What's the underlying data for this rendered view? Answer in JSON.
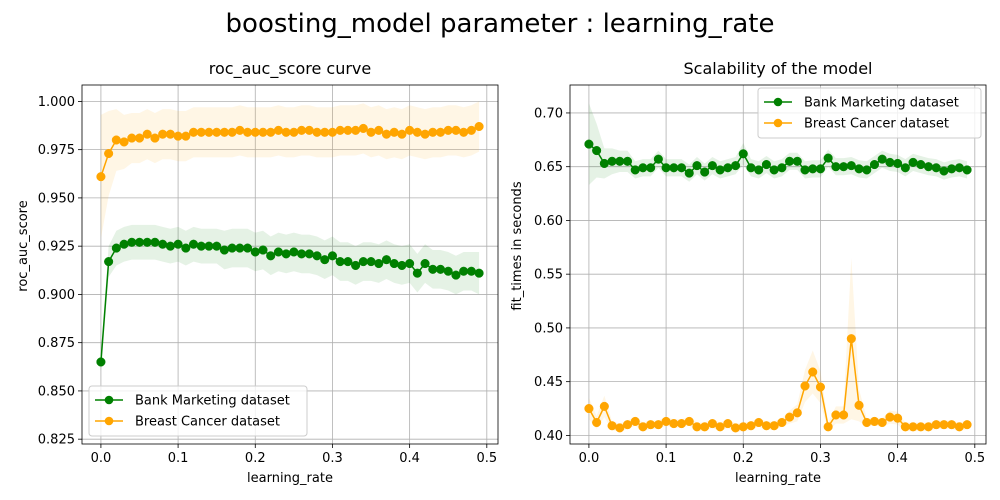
{
  "figure": {
    "title": "boosting_model parameter : learning_rate"
  },
  "chart_data": [
    {
      "type": "line",
      "title": "roc_auc_score curve",
      "xlabel": "learning_rate",
      "ylabel": "roc_auc_score",
      "xlim": [
        -0.0245,
        0.5145
      ],
      "ylim": [
        0.8225,
        1.0085
      ],
      "xticks": [
        "0.0",
        "0.1",
        "0.2",
        "0.3",
        "0.4",
        "0.5"
      ],
      "yticks": [
        "0.825",
        "0.850",
        "0.875",
        "0.900",
        "0.925",
        "0.950",
        "0.975",
        "1.000"
      ],
      "grid": true,
      "legend_position": "lower-left",
      "x": [
        0.0,
        0.01,
        0.02,
        0.03,
        0.04,
        0.05,
        0.06,
        0.07,
        0.08,
        0.09,
        0.1,
        0.11,
        0.12,
        0.13,
        0.14,
        0.15,
        0.16,
        0.17,
        0.18,
        0.19,
        0.2,
        0.21,
        0.22,
        0.23,
        0.24,
        0.25,
        0.26,
        0.27,
        0.28,
        0.29,
        0.3,
        0.31,
        0.32,
        0.33,
        0.34,
        0.35,
        0.36,
        0.37,
        0.38,
        0.39,
        0.4,
        0.41,
        0.42,
        0.43,
        0.44,
        0.45,
        0.46,
        0.47,
        0.48,
        0.49
      ],
      "series": [
        {
          "name": "Bank Marketing dataset",
          "color": "#008000",
          "values": [
            0.865,
            0.917,
            0.924,
            0.926,
            0.927,
            0.927,
            0.927,
            0.927,
            0.926,
            0.925,
            0.926,
            0.924,
            0.926,
            0.925,
            0.925,
            0.925,
            0.923,
            0.924,
            0.924,
            0.924,
            0.922,
            0.923,
            0.92,
            0.922,
            0.921,
            0.922,
            0.921,
            0.921,
            0.92,
            0.918,
            0.92,
            0.917,
            0.917,
            0.915,
            0.917,
            0.917,
            0.916,
            0.918,
            0.916,
            0.915,
            0.916,
            0.911,
            0.916,
            0.913,
            0.913,
            0.912,
            0.91,
            0.912,
            0.912,
            0.911
          ],
          "band": [
            0.005,
            0.008,
            0.009,
            0.009,
            0.009,
            0.009,
            0.009,
            0.009,
            0.009,
            0.009,
            0.009,
            0.009,
            0.009,
            0.009,
            0.009,
            0.009,
            0.01,
            0.01,
            0.01,
            0.01,
            0.01,
            0.01,
            0.01,
            0.01,
            0.01,
            0.01,
            0.01,
            0.01,
            0.01,
            0.01,
            0.01,
            0.01,
            0.01,
            0.01,
            0.01,
            0.01,
            0.01,
            0.01,
            0.01,
            0.01,
            0.01,
            0.01,
            0.01,
            0.01,
            0.01,
            0.01,
            0.01,
            0.01,
            0.01,
            0.011
          ]
        },
        {
          "name": "Breast Cancer dataset",
          "color": "#FFA500",
          "values": [
            0.961,
            0.973,
            0.98,
            0.979,
            0.981,
            0.981,
            0.983,
            0.981,
            0.983,
            0.983,
            0.982,
            0.982,
            0.984,
            0.984,
            0.984,
            0.984,
            0.984,
            0.984,
            0.985,
            0.984,
            0.984,
            0.984,
            0.984,
            0.985,
            0.984,
            0.984,
            0.985,
            0.985,
            0.984,
            0.984,
            0.984,
            0.985,
            0.985,
            0.985,
            0.986,
            0.984,
            0.985,
            0.983,
            0.984,
            0.983,
            0.985,
            0.984,
            0.983,
            0.984,
            0.984,
            0.985,
            0.985,
            0.984,
            0.985,
            0.987
          ],
          "band": [
            0.032,
            0.022,
            0.016,
            0.014,
            0.013,
            0.013,
            0.013,
            0.013,
            0.013,
            0.013,
            0.013,
            0.013,
            0.013,
            0.013,
            0.013,
            0.013,
            0.013,
            0.013,
            0.013,
            0.013,
            0.013,
            0.013,
            0.013,
            0.013,
            0.013,
            0.013,
            0.013,
            0.013,
            0.013,
            0.013,
            0.013,
            0.013,
            0.013,
            0.013,
            0.013,
            0.013,
            0.013,
            0.013,
            0.013,
            0.013,
            0.013,
            0.013,
            0.013,
            0.013,
            0.013,
            0.013,
            0.013,
            0.013,
            0.013,
            0.013
          ]
        }
      ]
    },
    {
      "type": "line",
      "title": "Scalability of the model",
      "xlabel": "learning_rate",
      "ylabel": "fit_times in seconds",
      "xlim": [
        -0.0245,
        0.5145
      ],
      "ylim": [
        0.392,
        0.726
      ],
      "xticks": [
        "0.0",
        "0.1",
        "0.2",
        "0.3",
        "0.4",
        "0.5"
      ],
      "yticks": [
        "0.40",
        "0.45",
        "0.50",
        "0.55",
        "0.60",
        "0.65",
        "0.70"
      ],
      "grid": true,
      "legend_position": "top-right",
      "x": [
        0.0,
        0.01,
        0.02,
        0.03,
        0.04,
        0.05,
        0.06,
        0.07,
        0.08,
        0.09,
        0.1,
        0.11,
        0.12,
        0.13,
        0.14,
        0.15,
        0.16,
        0.17,
        0.18,
        0.19,
        0.2,
        0.21,
        0.22,
        0.23,
        0.24,
        0.25,
        0.26,
        0.27,
        0.28,
        0.29,
        0.3,
        0.31,
        0.32,
        0.33,
        0.34,
        0.35,
        0.36,
        0.37,
        0.38,
        0.39,
        0.4,
        0.41,
        0.42,
        0.43,
        0.44,
        0.45,
        0.46,
        0.47,
        0.48,
        0.49
      ],
      "series": [
        {
          "name": "Bank Marketing dataset",
          "color": "#008000",
          "values": [
            0.671,
            0.665,
            0.653,
            0.655,
            0.655,
            0.655,
            0.647,
            0.649,
            0.649,
            0.657,
            0.649,
            0.649,
            0.649,
            0.644,
            0.651,
            0.645,
            0.651,
            0.647,
            0.649,
            0.651,
            0.662,
            0.649,
            0.647,
            0.652,
            0.647,
            0.649,
            0.655,
            0.655,
            0.647,
            0.648,
            0.648,
            0.658,
            0.65,
            0.65,
            0.651,
            0.648,
            0.647,
            0.652,
            0.657,
            0.654,
            0.653,
            0.649,
            0.654,
            0.652,
            0.65,
            0.649,
            0.646,
            0.648,
            0.649,
            0.647
          ],
          "band": [
            0.038,
            0.025,
            0.014,
            0.012,
            0.01,
            0.01,
            0.008,
            0.008,
            0.008,
            0.008,
            0.008,
            0.008,
            0.008,
            0.008,
            0.008,
            0.008,
            0.008,
            0.008,
            0.008,
            0.008,
            0.01,
            0.008,
            0.008,
            0.008,
            0.008,
            0.008,
            0.008,
            0.008,
            0.008,
            0.008,
            0.008,
            0.008,
            0.008,
            0.008,
            0.008,
            0.008,
            0.008,
            0.008,
            0.008,
            0.008,
            0.008,
            0.008,
            0.008,
            0.008,
            0.008,
            0.008,
            0.008,
            0.008,
            0.008,
            0.008
          ]
        },
        {
          "name": "Breast Cancer dataset",
          "color": "#FFA500",
          "values": [
            0.425,
            0.412,
            0.427,
            0.409,
            0.407,
            0.41,
            0.413,
            0.408,
            0.41,
            0.41,
            0.413,
            0.411,
            0.411,
            0.413,
            0.408,
            0.408,
            0.411,
            0.408,
            0.411,
            0.407,
            0.408,
            0.409,
            0.412,
            0.409,
            0.409,
            0.412,
            0.417,
            0.421,
            0.446,
            0.459,
            0.445,
            0.408,
            0.419,
            0.419,
            0.49,
            0.428,
            0.412,
            0.413,
            0.412,
            0.417,
            0.416,
            0.408,
            0.408,
            0.408,
            0.408,
            0.41,
            0.41,
            0.41,
            0.408,
            0.41
          ],
          "band": [
            0.01,
            0.006,
            0.01,
            0.004,
            0.004,
            0.004,
            0.004,
            0.004,
            0.004,
            0.004,
            0.004,
            0.004,
            0.004,
            0.004,
            0.004,
            0.004,
            0.004,
            0.004,
            0.004,
            0.004,
            0.004,
            0.004,
            0.004,
            0.004,
            0.004,
            0.004,
            0.006,
            0.008,
            0.015,
            0.02,
            0.015,
            0.004,
            0.008,
            0.008,
            0.075,
            0.015,
            0.004,
            0.004,
            0.004,
            0.006,
            0.006,
            0.004,
            0.004,
            0.004,
            0.004,
            0.004,
            0.004,
            0.004,
            0.004,
            0.004
          ]
        }
      ]
    }
  ]
}
